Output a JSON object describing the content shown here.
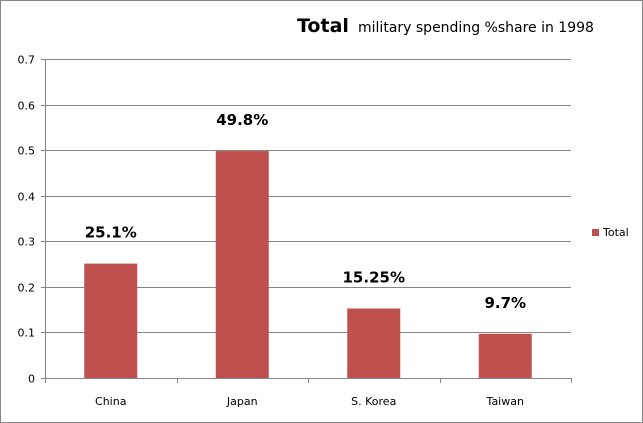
{
  "chart_data": {
    "type": "bar",
    "title_main": "Total",
    "title_sub": "military spending %share in 1998",
    "categories": [
      "China",
      "Japan",
      "S. Korea",
      "Taiwan"
    ],
    "series": [
      {
        "name": "Total",
        "values": [
          0.251,
          0.498,
          0.1525,
          0.097
        ],
        "color": "#C0504D"
      }
    ],
    "data_labels": [
      "25.1%",
      "49.8%",
      "15.25%",
      "9.7%"
    ],
    "xlabel": "",
    "ylabel": "",
    "ylim": [
      0,
      0.7
    ],
    "yticks": [
      "0",
      "0.1",
      "0.2",
      "0.3",
      "0.4",
      "0.5",
      "0.6",
      "0.7"
    ],
    "grid": true,
    "legend": "right"
  }
}
